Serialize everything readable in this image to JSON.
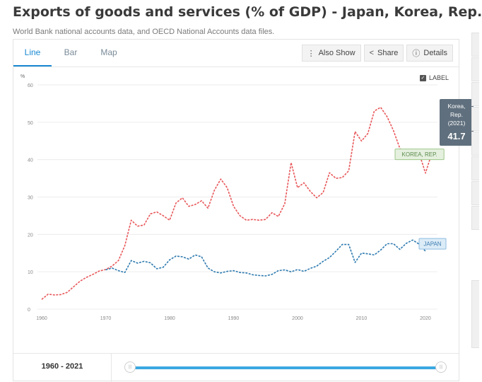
{
  "title": "Exports of goods and services (% of GDP) - Japan, Korea, Rep.",
  "source": "World Bank national accounts data, and OECD National Accounts data files.",
  "tabs": [
    {
      "label": "Line",
      "active": true
    },
    {
      "label": "Bar",
      "active": false
    },
    {
      "label": "Map",
      "active": false
    }
  ],
  "actions": {
    "also_show": {
      "label": "Also Show",
      "icon": "more-vertical-icon"
    },
    "share": {
      "label": "Share",
      "icon": "share-icon"
    },
    "details": {
      "label": "Details",
      "icon": "info-icon"
    }
  },
  "label_toggle": {
    "label": "LABEL",
    "checked": true
  },
  "footer": {
    "year_range": "1960 - 2021"
  },
  "chart_data": {
    "type": "line",
    "ylabel": "%",
    "xlim": [
      1960,
      2021
    ],
    "ylim": [
      0,
      60
    ],
    "yticks": [
      0,
      10,
      20,
      30,
      40,
      50,
      60
    ],
    "xticks": [
      1960,
      1970,
      1980,
      1990,
      2000,
      2010,
      2020
    ],
    "grid": true,
    "line_style": "dashed",
    "series": [
      {
        "name": "KOREA, REP.",
        "color": "#e8575a",
        "x": [
          1960,
          1961,
          1962,
          1963,
          1964,
          1965,
          1966,
          1967,
          1968,
          1969,
          1970,
          1971,
          1972,
          1973,
          1974,
          1975,
          1976,
          1977,
          1978,
          1979,
          1980,
          1981,
          1982,
          1983,
          1984,
          1985,
          1986,
          1987,
          1988,
          1989,
          1990,
          1991,
          1992,
          1993,
          1994,
          1995,
          1996,
          1997,
          1998,
          1999,
          2000,
          2001,
          2002,
          2003,
          2004,
          2005,
          2006,
          2007,
          2008,
          2009,
          2010,
          2011,
          2012,
          2013,
          2014,
          2015,
          2016,
          2017,
          2018,
          2019,
          2020,
          2021
        ],
        "values": [
          2.6,
          4.0,
          3.8,
          3.9,
          4.5,
          6.0,
          7.5,
          8.5,
          9.3,
          10.2,
          10.6,
          11.5,
          13.0,
          17.0,
          23.8,
          22.2,
          22.5,
          25.5,
          26.0,
          25.0,
          23.8,
          28.4,
          29.8,
          27.5,
          28.0,
          29.0,
          27.0,
          31.8,
          34.8,
          32.5,
          27.5,
          25.0,
          23.8,
          24.0,
          23.8,
          24.0,
          25.8,
          24.8,
          28.2,
          39.2,
          32.5,
          33.8,
          31.5,
          29.8,
          31.2,
          36.5,
          35.0,
          35.2,
          37.0,
          47.5,
          45.0,
          47.0,
          53.0,
          54.0,
          51.5,
          47.8,
          43.0,
          40.4,
          41.0,
          41.8,
          36.4,
          41.7
        ]
      },
      {
        "name": "JAPAN",
        "color": "#2f7bb0",
        "x": [
          1970,
          1971,
          1972,
          1973,
          1974,
          1975,
          1976,
          1977,
          1978,
          1979,
          1980,
          1981,
          1982,
          1983,
          1984,
          1985,
          1986,
          1987,
          1988,
          1989,
          1990,
          1991,
          1992,
          1993,
          1994,
          1995,
          1996,
          1997,
          1998,
          1999,
          2000,
          2001,
          2002,
          2003,
          2004,
          2005,
          2006,
          2007,
          2008,
          2009,
          2010,
          2011,
          2012,
          2013,
          2014,
          2015,
          2016,
          2017,
          2018,
          2019,
          2020
        ],
        "values": [
          10.5,
          11.0,
          10.3,
          9.8,
          13.0,
          12.3,
          12.8,
          12.4,
          10.8,
          11.2,
          13.2,
          14.2,
          14.0,
          13.4,
          14.5,
          14.0,
          11.0,
          10.0,
          9.7,
          10.1,
          10.3,
          9.8,
          9.7,
          9.2,
          9.0,
          8.9,
          9.3,
          10.3,
          10.5,
          10.0,
          10.6,
          10.1,
          10.9,
          11.5,
          12.8,
          13.8,
          15.5,
          17.3,
          17.3,
          12.5,
          15.0,
          14.8,
          14.5,
          15.8,
          17.5,
          17.5,
          16.0,
          17.6,
          18.5,
          17.4,
          15.5
        ]
      }
    ],
    "labels": [
      {
        "text": "KOREA, REP.",
        "series": "KOREA, REP."
      },
      {
        "text": "JAPAN",
        "series": "JAPAN"
      }
    ],
    "tooltip": {
      "country": "Korea, Rep.",
      "year": "(2021)",
      "value": "41.7"
    }
  }
}
